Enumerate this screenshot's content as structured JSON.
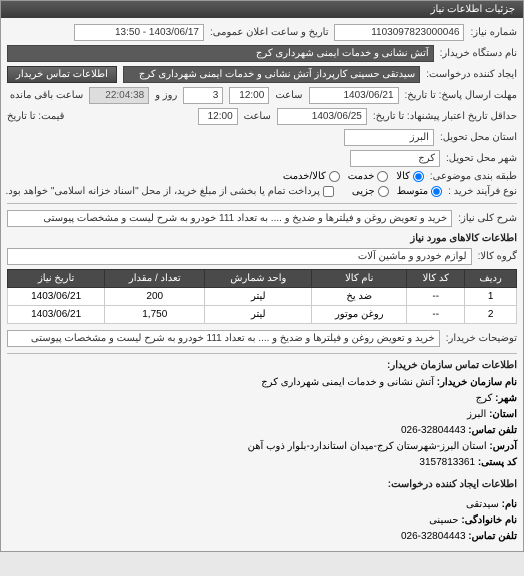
{
  "window_title": "جزئیات اطلاعات نیاز",
  "header": {
    "need_no_label": "شماره نیاز:",
    "need_no": "1103097823000046",
    "announce_label": "تاریخ و ساعت اعلان عمومی:",
    "announce_value": "1403/06/17 - 13:50",
    "org_label": "نام دستگاه خریدار:",
    "org_value": "آتش نشانی و خدمات ایمنی شهرداری کرج",
    "requester_label": "ایجاد کننده درخواست:",
    "requester_value": "سیدتقی حسینی کارپرداز آتش نشانی و خدمات ایمنی شهرداری کرج",
    "contact_btn": "اطلاعات تماس خریدار"
  },
  "deadlines": {
    "reply_until_label": "مهلت ارسال پاسخ: تا تاریخ:",
    "reply_date": "1403/06/21",
    "reply_time_label": "ساعت",
    "reply_time": "12:00",
    "remaining_days": "3",
    "remaining_unit": "روز و",
    "remaining_time": "22:04:38",
    "remaining_label": "ساعت باقی مانده",
    "min_valid_label": "حداقل تاریخ اعتبار پیشنهاد: تا تاریخ:",
    "min_valid_date": "1403/06/25",
    "min_valid_time": "12:00",
    "price_label": "قیمت: تا تاریخ"
  },
  "location": {
    "province_label": "استان محل تحویل:",
    "province": "البرز",
    "city_label": "شهر محل تحویل:",
    "city": "کرج"
  },
  "classification": {
    "budget_label": "طبقه بندی موضوعی:",
    "opt_kala": "کالا",
    "opt_khadamat": "خدمت",
    "opt_kala_khadamat": "کالا/خدمت",
    "process_label": "نوع فرآیند خرید :",
    "opt_medium": "متوسط",
    "opt_partial": "جزیی",
    "note": "پرداخت تمام یا بخشی از مبلغ خرید، از محل \"اسناد خزانه اسلامی\" خواهد بود."
  },
  "need": {
    "title_label": "شرح کلی نیاز:",
    "title_value": "خرید و تعویض روغن و فیلترها و ضدیخ و .... به تعداد 111 خودرو به شرح لیست و مشخصات پیوستی"
  },
  "goods_section": "اطلاعات کالاهای مورد نیاز",
  "group": {
    "label": "گروه کالا:",
    "value": "لوازم خودرو و ماشین آلات"
  },
  "table": {
    "cols": {
      "row": "ردیف",
      "code": "کد کالا",
      "name": "نام کالا",
      "unit": "واحد شمارش",
      "qty": "تعداد / مقدار",
      "date": "تاریخ نیاز"
    },
    "rows": [
      {
        "n": "1",
        "code": "--",
        "name": "ضد یخ",
        "unit": "لیتر",
        "qty": "200",
        "date": "1403/06/21"
      },
      {
        "n": "2",
        "code": "--",
        "name": "روغن موتور",
        "unit": "لیتر",
        "qty": "1,750",
        "date": "1403/06/21"
      }
    ]
  },
  "buyer_desc": {
    "label": "توضیحات خریدار:",
    "value": "خرید و تعویض روغن و فیلترها و ضدیخ و .... به تعداد 111 خودرو به شرح لیست و مشخصات پیوستی"
  },
  "contact_section": "اطلاعات تماس سازمان خریدار:",
  "contact": {
    "org_label": "نام سازمان خریدار:",
    "org": "آتش نشانی و خدمات ایمنی شهرداری کرج",
    "city_label": "شهر:",
    "city": "کرج",
    "province_label": "استان:",
    "province": "البرز",
    "phone_label": "تلفن تماس:",
    "phone": "32804443-026",
    "address_label": "آدرس:",
    "address": "استان البرز-شهرستان کرج-میدان استاندارد-بلوار ذوب آهن",
    "postal_label": "کد پستی:",
    "postal": "3157813361",
    "creator_section": "اطلاعات ایجاد کننده درخواست:",
    "name_label": "نام:",
    "name": "سیدتقی",
    "family_label": "نام خانوادگی:",
    "family": "حسینی",
    "phone2_label": "تلفن تماس:",
    "phone2": "32804443-026"
  }
}
